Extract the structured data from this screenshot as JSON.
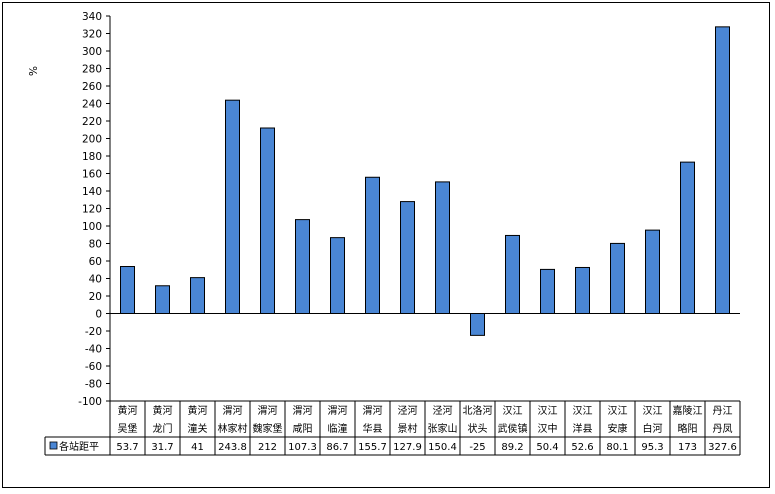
{
  "chart_data": {
    "type": "bar",
    "ylabel": "%",
    "ylim": [
      -100,
      340
    ],
    "ytick_step": 20,
    "grid": false,
    "legend_position": "data-table-row",
    "bar_color": "#4a86d4",
    "bar_edge_color": "#000000",
    "categories": [
      [
        "黄河",
        "吴堡"
      ],
      [
        "黄河",
        "龙门"
      ],
      [
        "黄河",
        "潼关"
      ],
      [
        "渭河",
        "林家村"
      ],
      [
        "渭河",
        "魏家堡"
      ],
      [
        "渭河",
        "咸阳"
      ],
      [
        "渭河",
        "临潼"
      ],
      [
        "渭河",
        "华县"
      ],
      [
        "泾河",
        "景村"
      ],
      [
        "泾河",
        "张家山"
      ],
      [
        "北洛河",
        "状头"
      ],
      [
        "汉江",
        "武侯镇"
      ],
      [
        "汉江",
        "汉中"
      ],
      [
        "汉江",
        "洋县"
      ],
      [
        "汉江",
        "安康"
      ],
      [
        "汉江",
        "白河"
      ],
      [
        "嘉陵江",
        "略阳"
      ],
      [
        "丹江",
        "丹凤"
      ]
    ],
    "series": [
      {
        "name": "各站距平",
        "values": [
          53.7,
          31.7,
          41,
          243.8,
          212,
          107.3,
          86.7,
          155.7,
          127.9,
          150.4,
          -25,
          89.2,
          50.4,
          52.6,
          80.1,
          95.3,
          173,
          327.6
        ],
        "labels": [
          "53.7",
          "31.7",
          "41",
          "243.8",
          "212",
          "107.3",
          "86.7",
          "155.7",
          "127.9",
          "150.4",
          "-25",
          "89.2",
          "50.4",
          "52.6",
          "80.1",
          "95.3",
          "173",
          "327.6"
        ]
      }
    ]
  }
}
